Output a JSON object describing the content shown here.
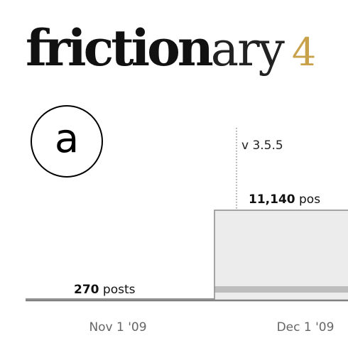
{
  "logo": {
    "grunge_text": "friction",
    "plain_text": "ary",
    "partial_text": "4"
  },
  "panel_label": "a",
  "chart_data": {
    "type": "area",
    "title": "",
    "xlabel": "",
    "ylabel": "",
    "x_ticks": [
      "Nov 1 '09",
      "Dec 1 '09"
    ],
    "series": [
      {
        "name": "posts",
        "values": [
          270,
          11140
        ]
      }
    ],
    "annotations": [
      {
        "label": "v 3.5.5",
        "at_tick": "Dec 1 '09"
      }
    ],
    "data_labels": [
      {
        "value": "270",
        "suffix": "posts"
      },
      {
        "value": "11,140",
        "suffix": "pos"
      }
    ],
    "ylim": [
      0,
      12000
    ]
  },
  "colors": {
    "fill_main": "#ececec",
    "fill_band": "#bdbdbd",
    "axis": "#808080",
    "guide": "#555555"
  }
}
